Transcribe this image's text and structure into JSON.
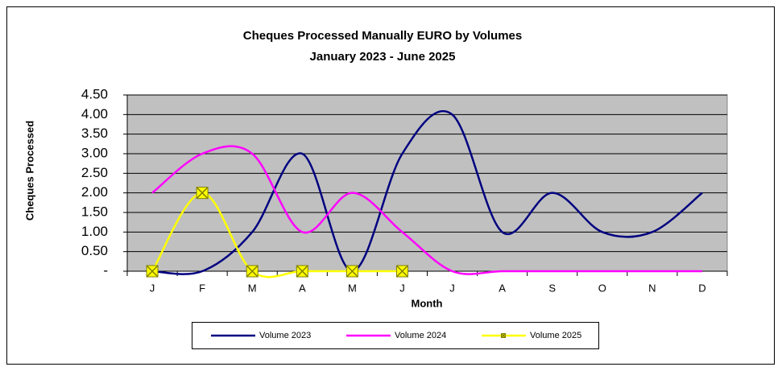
{
  "chart_data": {
    "type": "line",
    "title": "Cheques Processed Manually EURO by Volumes",
    "subtitle": "January 2023 - June 2025",
    "x_label": "Month",
    "y_label": "Cheques Processed",
    "categories": [
      "J",
      "F",
      "M",
      "A",
      "M",
      "J",
      "J",
      "A",
      "S",
      "O",
      "N",
      "D"
    ],
    "series": [
      {
        "name": "Volume 2023",
        "color": "#000080",
        "values": [
          0,
          0,
          1,
          3,
          0,
          3,
          4,
          1,
          2,
          1,
          1,
          2
        ]
      },
      {
        "name": "Volume 2024",
        "color": "#ff00ff",
        "values": [
          2,
          3,
          3,
          1,
          2,
          1,
          0,
          0,
          0,
          0,
          0,
          0
        ]
      },
      {
        "name": "Volume 2025",
        "color": "#ffff00",
        "values": [
          0,
          2,
          0,
          0,
          0,
          0,
          null,
          null,
          null,
          null,
          null,
          null
        ]
      }
    ],
    "ylim": [
      0,
      4.5
    ],
    "yticks": [
      {
        "value": 0,
        "label": "-"
      },
      {
        "value": 0.5,
        "label": "0.50"
      },
      {
        "value": 1,
        "label": "1.00"
      },
      {
        "value": 1.5,
        "label": "1.50"
      },
      {
        "value": 2,
        "label": "2.00"
      },
      {
        "value": 2.5,
        "label": "2.50"
      },
      {
        "value": 3,
        "label": "3.00"
      },
      {
        "value": 3.5,
        "label": "3.50"
      },
      {
        "value": 4,
        "label": "4.00"
      },
      {
        "value": 4.5,
        "label": "4.50"
      }
    ],
    "grid": true,
    "smooth": true,
    "plot_background": "#c0c0c0",
    "legend": "bottom"
  }
}
